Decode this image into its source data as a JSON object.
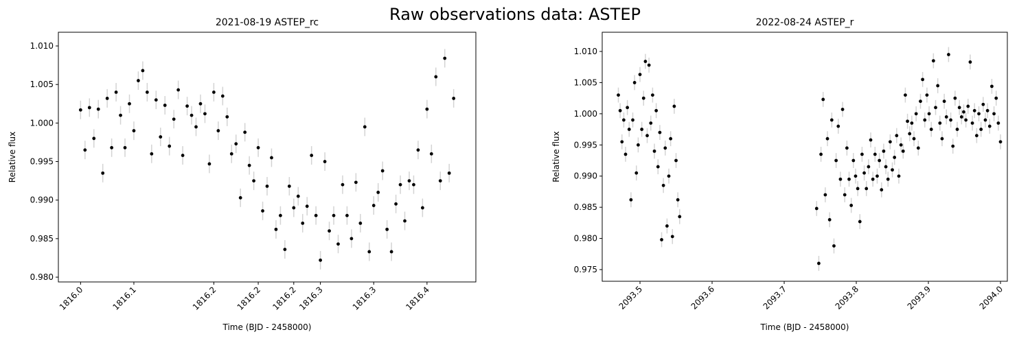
{
  "figure_title": "Raw observations data: ASTEP",
  "chart_data": [
    {
      "type": "scatter",
      "title": "2021-08-19 ASTEP_rc",
      "xlabel": "Time (BJD - 2458000)",
      "ylabel": "Relative flux",
      "xlim": [
        1815.975,
        1816.445
      ],
      "ylim": [
        0.97938,
        1.01178
      ],
      "xticks": [
        {
          "value": 1816,
          "label": "1816.0"
        },
        {
          "value": 1816.06,
          "label": "1816.1"
        },
        {
          "value": 1816.15,
          "label": "1816.2"
        },
        1816.2,
        {
          "value": 1816.24,
          "label": "1816.2"
        },
        {
          "value": 1816.27,
          "label": "1816.3"
        },
        {
          "value": 1816.33,
          "label": "1816.3"
        },
        {
          "value": 1816.39,
          "label": "1816.4"
        }
      ],
      "yticks": [
        {
          "value": 0.98,
          "label": "0.980"
        },
        0.985,
        {
          "value": 0.99,
          "label": "0.990"
        },
        0.995,
        {
          "value": 1,
          "label": "1.000"
        },
        1.005,
        {
          "value": 1.01,
          "label": "1.010"
        }
      ],
      "series": [
        {
          "color": "#000000",
          "error_color": "#d3d3d3",
          "yerr": 0.0012,
          "x": [
            1816,
            1816.005,
            1816.01,
            1816.015,
            1816.02,
            1816.025,
            1816.03,
            1816.035,
            1816.04,
            1816.045,
            1816.05,
            1816.055,
            1816.06,
            1816.065,
            1816.07,
            1816.075,
            1816.08,
            1816.085,
            1816.09,
            1816.095,
            1816.1,
            1816.105,
            1816.11,
            1816.115,
            1816.12,
            1816.125,
            1816.13,
            1816.135,
            1816.14,
            1816.145,
            1816.15,
            1816.155,
            1816.16,
            1816.165,
            1816.17,
            1816.175,
            1816.18,
            1816.185,
            1816.19,
            1816.195,
            1816.2,
            1816.205,
            1816.21,
            1816.215,
            1816.22,
            1816.225,
            1816.23,
            1816.235,
            1816.24,
            1816.245,
            1816.25,
            1816.255,
            1816.26,
            1816.265,
            1816.27,
            1816.275,
            1816.28,
            1816.285,
            1816.29,
            1816.295,
            1816.3,
            1816.305,
            1816.31,
            1816.315,
            1816.32,
            1816.325,
            1816.33,
            1816.335,
            1816.34,
            1816.345,
            1816.35,
            1816.355,
            1816.36,
            1816.365,
            1816.37,
            1816.375,
            1816.38,
            1816.385,
            1816.39,
            1816.395,
            1816.4,
            1816.405,
            1816.41,
            1816.415,
            1816.42
          ],
          "values": [
            1.0017,
            0.9965,
            1.002,
            0.998,
            1.0018,
            0.9935,
            1.0032,
            0.9968,
            1.004,
            1.001,
            0.9968,
            1.0025,
            0.999,
            1.0055,
            1.0068,
            1.004,
            0.996,
            1.003,
            0.9982,
            1.0023,
            0.997,
            1.0005,
            1.0043,
            0.9958,
            1.0022,
            1.001,
            0.9995,
            1.0025,
            1.0012,
            0.9947,
            1.004,
            0.999,
            1.0035,
            1.0008,
            0.996,
            0.9973,
            0.9903,
            0.9988,
            0.9945,
            0.9925,
            0.9968,
            0.9886,
            0.9918,
            0.9955,
            0.9862,
            0.988,
            0.9836,
            0.9918,
            0.989,
            0.9905,
            0.987,
            0.9892,
            0.9958,
            0.988,
            0.9822,
            0.995,
            0.986,
            0.988,
            0.9843,
            0.992,
            0.988,
            0.985,
            0.9923,
            0.987,
            0.9995,
            0.9833,
            0.9893,
            0.991,
            0.9938,
            0.9862,
            0.9833,
            0.9895,
            0.992,
            0.9873,
            0.9925,
            0.992,
            0.9965,
            0.989,
            1.0018,
            0.996,
            1.006,
            0.9925,
            1.0084,
            0.9935,
            1.0032
          ]
        }
      ]
    },
    {
      "type": "scatter",
      "title": "2022-08-24 ASTEP_r",
      "xlabel": "Time (BJD - 2458000)",
      "ylabel": "Relative flux",
      "xlim": [
        2093.4476,
        2094.0095
      ],
      "ylim": [
        0.97313,
        1.01308
      ],
      "xticks": [
        2093.5,
        2093.6,
        2093.7,
        2093.8,
        2093.9,
        {
          "value": 2094,
          "label": "2094.0"
        }
      ],
      "yticks": [
        0.975,
        {
          "value": 0.98,
          "label": "0.980"
        },
        0.985,
        {
          "value": 0.99,
          "label": "0.990"
        },
        0.995,
        {
          "value": 1,
          "label": "1.000"
        },
        1.005,
        {
          "value": 1.01,
          "label": "1.010"
        }
      ],
      "series": [
        {
          "color": "#000000",
          "error_color": "#d3d3d3",
          "yerr": 0.0012,
          "x": [
            2093.47,
            2093.4725,
            2093.475,
            2093.4775,
            2093.48,
            2093.4825,
            2093.485,
            2093.4875,
            2093.49,
            2093.4925,
            2093.495,
            2093.4975,
            2093.5,
            2093.5025,
            2093.505,
            2093.5075,
            2093.51,
            2093.5125,
            2093.515,
            2093.5175,
            2093.52,
            2093.5225,
            2093.525,
            2093.5275,
            2093.53,
            2093.5325,
            2093.535,
            2093.5375,
            2093.54,
            2093.5425,
            2093.545,
            2093.5475,
            2093.55,
            2093.5525,
            2093.555,
            2093.745,
            2093.748,
            2093.751,
            2093.754,
            2093.757,
            2093.76,
            2093.763,
            2093.766,
            2093.769,
            2093.772,
            2093.775,
            2093.778,
            2093.781,
            2093.784,
            2093.787,
            2093.79,
            2093.793,
            2093.796,
            2093.799,
            2093.802,
            2093.805,
            2093.808,
            2093.811,
            2093.814,
            2093.817,
            2093.82,
            2093.823,
            2093.826,
            2093.829,
            2093.832,
            2093.835,
            2093.838,
            2093.841,
            2093.844,
            2093.847,
            2093.85,
            2093.853,
            2093.856,
            2093.859,
            2093.862,
            2093.865,
            2093.868,
            2093.871,
            2093.874,
            2093.877,
            2093.88,
            2093.883,
            2093.886,
            2093.889,
            2093.892,
            2093.895,
            2093.898,
            2093.901,
            2093.904,
            2093.907,
            2093.91,
            2093.913,
            2093.916,
            2093.919,
            2093.922,
            2093.925,
            2093.928,
            2093.931,
            2093.934,
            2093.937,
            2093.94,
            2093.943,
            2093.946,
            2093.949,
            2093.952,
            2093.955,
            2093.958,
            2093.961,
            2093.964,
            2093.967,
            2093.97,
            2093.973,
            2093.976,
            2093.979,
            2093.982,
            2093.985,
            2093.988,
            2093.991,
            2093.994,
            2093.997,
            2094
          ],
          "values": [
            1.003,
            1.0005,
            0.9955,
            0.999,
            0.9935,
            1.001,
            0.9975,
            0.9862,
            0.999,
            1.005,
            0.9905,
            0.995,
            1.0063,
            0.9975,
            1.0025,
            1.0084,
            0.9965,
            1.0078,
            0.9985,
            1.003,
            0.994,
            1.0005,
            0.9915,
            0.997,
            0.9798,
            0.9885,
            0.9945,
            0.982,
            0.99,
            0.996,
            0.9803,
            1.0012,
            0.9925,
            0.9862,
            0.9835,
            0.9848,
            0.976,
            0.9935,
            1.0023,
            0.987,
            0.996,
            0.983,
            0.999,
            0.9788,
            0.9925,
            0.998,
            0.9895,
            1.0007,
            0.987,
            0.9945,
            0.9895,
            0.9853,
            0.9925,
            0.99,
            0.988,
            0.9827,
            0.9935,
            0.9905,
            0.988,
            0.9915,
            0.9958,
            0.9895,
            0.9935,
            0.99,
            0.9925,
            0.9878,
            0.994,
            0.9915,
            0.9895,
            0.9955,
            0.991,
            0.993,
            0.9965,
            0.99,
            0.995,
            0.994,
            1.003,
            0.9988,
            0.9968,
            0.9985,
            0.996,
            1,
            0.9945,
            1.002,
            1.0055,
            0.999,
            1.003,
            1,
            0.9975,
            1.0085,
            1.001,
            1.0045,
            0.9985,
            0.996,
            1.002,
            0.9995,
            1.0095,
            0.999,
            0.9948,
            1.0025,
            0.9975,
            1.001,
            0.9995,
            1.0003,
            0.999,
            1.0012,
            1.0083,
            0.9985,
            1.0005,
            0.9965,
            1,
            0.9975,
            1.0015,
            0.999,
            1.0005,
            0.998,
            1.0044,
            1,
            1.0025,
            0.9985,
            0.9955
          ]
        }
      ]
    }
  ]
}
